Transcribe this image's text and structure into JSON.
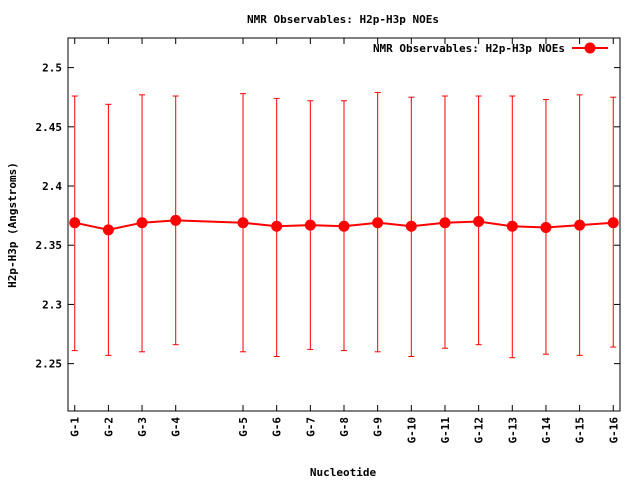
{
  "chart_data": {
    "type": "line",
    "title": "NMR Observables: H2p-H3p NOEs",
    "xlabel": "Nucleotide",
    "ylabel": "H2p-H3p (Angstroms)",
    "ylim": [
      2.21,
      2.525
    ],
    "yticks": [
      "2.25",
      "2.3",
      "2.35",
      "2.4",
      "2.45",
      "2.5"
    ],
    "ytick_values": [
      2.25,
      2.3,
      2.35,
      2.4,
      2.45,
      2.5
    ],
    "categories": [
      "G-1",
      "G-2",
      "G-3",
      "G-4",
      "G-5",
      "G-6",
      "G-7",
      "G-8",
      "G-9",
      "G-10",
      "G-11",
      "G-12",
      "G-13",
      "G-14",
      "G-15",
      "G-16"
    ],
    "x": [
      1,
      2,
      3,
      4,
      6,
      7,
      8,
      9,
      10,
      11,
      12,
      13,
      14,
      15,
      16,
      17
    ],
    "xlim": [
      0.8,
      17.2
    ],
    "grid": false,
    "legend_position": "top-right",
    "series": [
      {
        "name": "NMR Observables: H2p-H3p NOEs",
        "color": "#ff0000",
        "values": [
          2.369,
          2.363,
          2.369,
          2.371,
          2.369,
          2.366,
          2.367,
          2.366,
          2.369,
          2.366,
          2.369,
          2.37,
          2.366,
          2.365,
          2.367,
          2.369
        ],
        "err_low": [
          2.261,
          2.257,
          2.26,
          2.266,
          2.26,
          2.256,
          2.262,
          2.261,
          2.26,
          2.256,
          2.263,
          2.266,
          2.255,
          2.258,
          2.257,
          2.264
        ],
        "err_high": [
          2.476,
          2.469,
          2.477,
          2.476,
          2.478,
          2.474,
          2.472,
          2.472,
          2.479,
          2.475,
          2.476,
          2.476,
          2.476,
          2.473,
          2.477,
          2.475
        ]
      }
    ]
  }
}
